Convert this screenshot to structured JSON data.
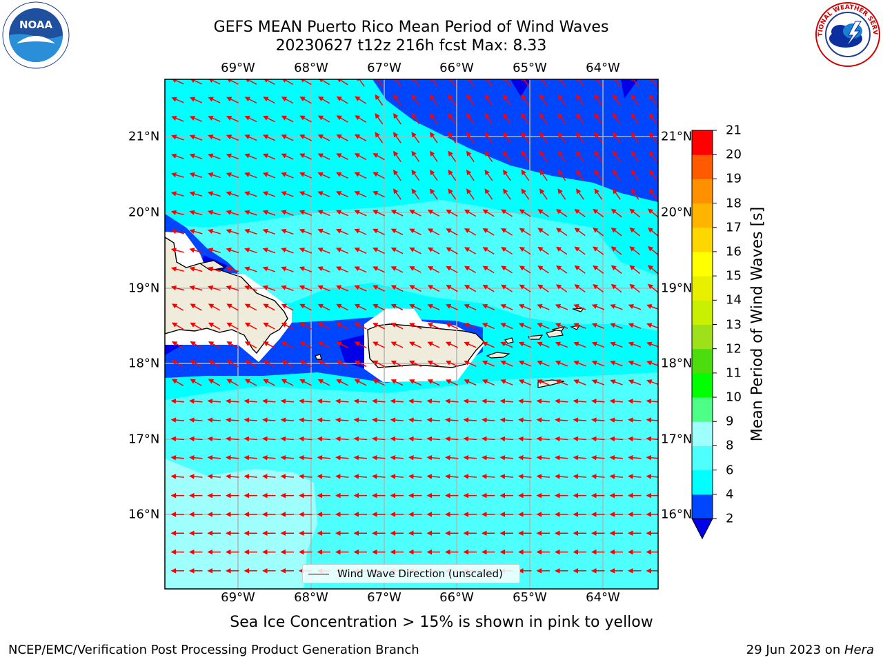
{
  "title": {
    "line1": "GEFS MEAN Puerto Rico Mean Period of Wind Waves",
    "line2": "20230627 t12z 216h fcst   Max: 8.33"
  },
  "logos": {
    "left": "noaa-logo",
    "left_text": "NOAA",
    "left_ring_text": "NATIONAL OCEANIC AND ATMOSPHERIC ADMINISTRATION · U.S. DEPARTMENT OF COMMERCE",
    "right": "nws-logo",
    "right_ring_text": "NATIONAL WEATHER SERVICE"
  },
  "map": {
    "lon_labels": [
      "69°W",
      "68°W",
      "67°W",
      "66°W",
      "65°W",
      "64°W"
    ],
    "lat_labels": [
      "21°N",
      "20°N",
      "19°N",
      "18°N",
      "17°N",
      "16°N"
    ],
    "land_color": "#efecdc",
    "arrow_color": "#ff0000",
    "legend_label": "Wind Wave Direction (unscaled)"
  },
  "colorbar": {
    "title": "Mean Period of Wind Waves [s]",
    "levels": [
      "2",
      "4",
      "6",
      "8",
      "9",
      "10",
      "11",
      "12",
      "13",
      "14",
      "15",
      "16",
      "17",
      "18",
      "19",
      "20",
      "21"
    ],
    "colors": [
      "#0046ff",
      "#00ffff",
      "#4dfffd",
      "#9efffd",
      "#4dff86",
      "#00ff00",
      "#4ddc0e",
      "#9ee01a",
      "#c8f000",
      "#e8f000",
      "#ffff00",
      "#ffd700",
      "#ffb400",
      "#ff9100",
      "#ff5a00",
      "#ff0000"
    ],
    "extend_color": "#0000e6"
  },
  "note": "Sea Ice Concentration > 15% is shown in pink to yellow",
  "footer": {
    "left": "NCEP/EMC/Verification Post Processing Product Generation Branch",
    "right_prefix": "29 Jun 2023 on ",
    "right_host": "Hera"
  }
}
